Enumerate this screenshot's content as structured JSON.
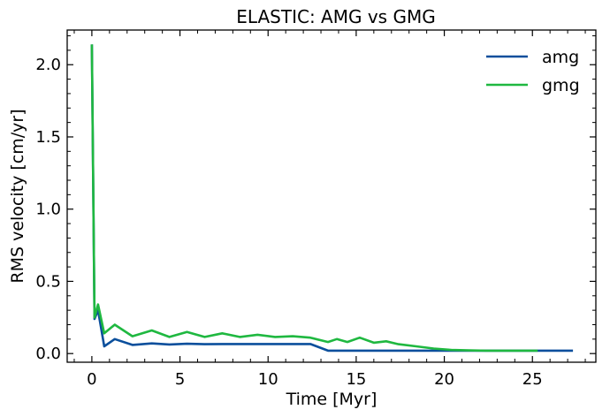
{
  "chart_data": {
    "type": "line",
    "title": "ELASTIC: AMG vs GMG",
    "xlabel": "Time [Myr]",
    "ylabel": "RMS velocity [cm/yr]",
    "xlim": [
      -1.4,
      28.6
    ],
    "ylim": [
      -0.06,
      2.24
    ],
    "xticks": [
      0,
      5,
      10,
      15,
      20,
      25
    ],
    "xtick_labels": [
      "0",
      "5",
      "10",
      "15",
      "20",
      "25"
    ],
    "yticks": [
      0.0,
      0.5,
      1.0,
      1.5,
      2.0
    ],
    "ytick_labels": [
      "0.0",
      "0.5",
      "1.0",
      "1.5",
      "2.0"
    ],
    "legend_position": "top-right",
    "series": [
      {
        "name": "amg",
        "color": "#0b4f9c",
        "x": [
          0.0,
          0.15,
          0.35,
          0.7,
          1.3,
          2.3,
          3.4,
          4.4,
          5.4,
          6.4,
          7.4,
          8.4,
          9.4,
          10.4,
          11.4,
          12.4,
          13.4,
          14.4,
          15.4,
          16.4,
          17.4,
          18.4,
          19.4,
          20.4,
          21.4,
          22.4,
          23.4,
          24.4,
          25.4,
          26.4,
          27.3
        ],
        "y": [
          2.14,
          0.24,
          0.3,
          0.05,
          0.1,
          0.06,
          0.07,
          0.063,
          0.068,
          0.065,
          0.066,
          0.066,
          0.066,
          0.066,
          0.066,
          0.066,
          0.02,
          0.02,
          0.02,
          0.02,
          0.02,
          0.02,
          0.02,
          0.02,
          0.02,
          0.02,
          0.02,
          0.02,
          0.02,
          0.02,
          0.02
        ]
      },
      {
        "name": "gmg",
        "color": "#1fb840",
        "x": [
          0.0,
          0.15,
          0.35,
          0.7,
          1.3,
          2.3,
          3.4,
          4.4,
          5.4,
          6.4,
          7.4,
          8.4,
          9.4,
          10.4,
          11.4,
          12.4,
          13.4,
          13.9,
          14.5,
          15.2,
          16.0,
          16.7,
          17.4,
          18.4,
          19.4,
          20.4,
          21.4,
          22.4,
          23.4,
          24.4,
          25.3
        ],
        "y": [
          2.14,
          0.25,
          0.34,
          0.14,
          0.2,
          0.12,
          0.16,
          0.115,
          0.15,
          0.115,
          0.14,
          0.115,
          0.13,
          0.115,
          0.12,
          0.11,
          0.08,
          0.1,
          0.08,
          0.11,
          0.075,
          0.085,
          0.065,
          0.05,
          0.035,
          0.025,
          0.022,
          0.02,
          0.02,
          0.02,
          0.02
        ]
      }
    ]
  }
}
